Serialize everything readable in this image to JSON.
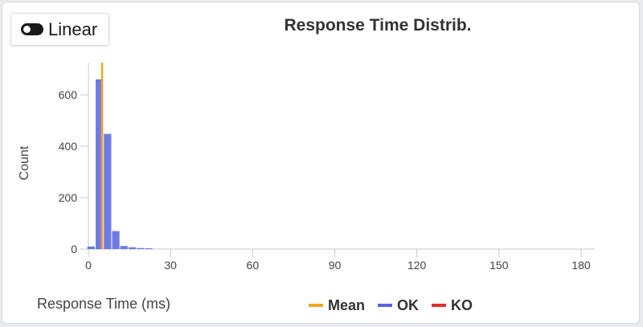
{
  "toggle": {
    "label": "Linear",
    "icon": "toggle-switch-icon"
  },
  "colors": {
    "mean": "#f5a623",
    "ok": "#5664e0",
    "ko": "#e32d2d"
  },
  "chart_data": {
    "type": "bar",
    "title": "Response Time Distrib.",
    "xlabel": "Response Time (ms)",
    "ylabel": "Count",
    "xlim": [
      0,
      185
    ],
    "ylim": [
      0,
      725
    ],
    "xticks": [
      0,
      30,
      60,
      90,
      120,
      150,
      180
    ],
    "yticks": [
      0,
      200,
      400,
      600
    ],
    "grid": false,
    "legend_position": "bottom",
    "series": [
      {
        "name": "OK",
        "x": [
          1,
          4,
          7,
          10,
          13,
          16,
          19,
          22
        ],
        "values": [
          10,
          660,
          448,
          70,
          12,
          7,
          4,
          3
        ]
      },
      {
        "name": "KO",
        "x": [],
        "values": []
      }
    ],
    "mean": {
      "name": "Mean",
      "x": 5
    }
  }
}
